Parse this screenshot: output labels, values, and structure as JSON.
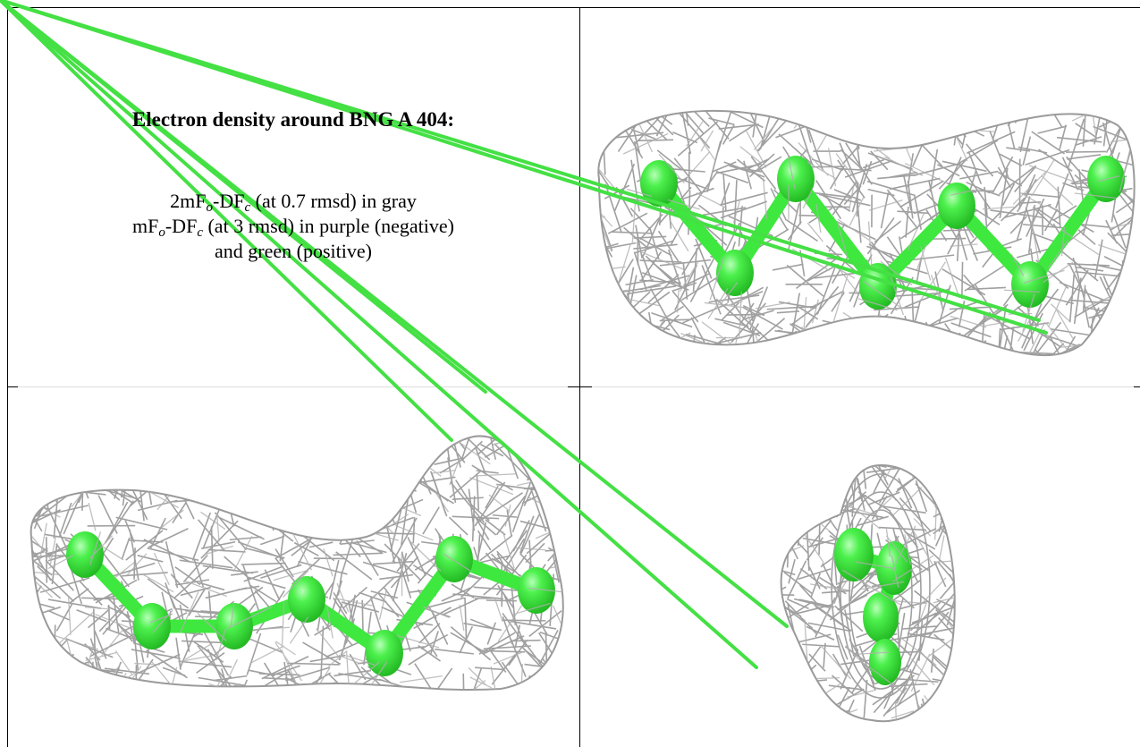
{
  "cell_text": {
    "title": "Electron density around BNG A 404:",
    "lines": [
      [
        "2mF",
        {
          "sub": "o"
        },
        "-DF",
        {
          "sub": "c"
        },
        " (at 0.7 rmsd) in gray"
      ],
      [
        "mF",
        {
          "sub": "o"
        },
        "-DF",
        {
          "sub": "c"
        },
        " (at 3 rmsd) in purple (negative)"
      ],
      [
        "and green (positive)"
      ]
    ]
  }
}
